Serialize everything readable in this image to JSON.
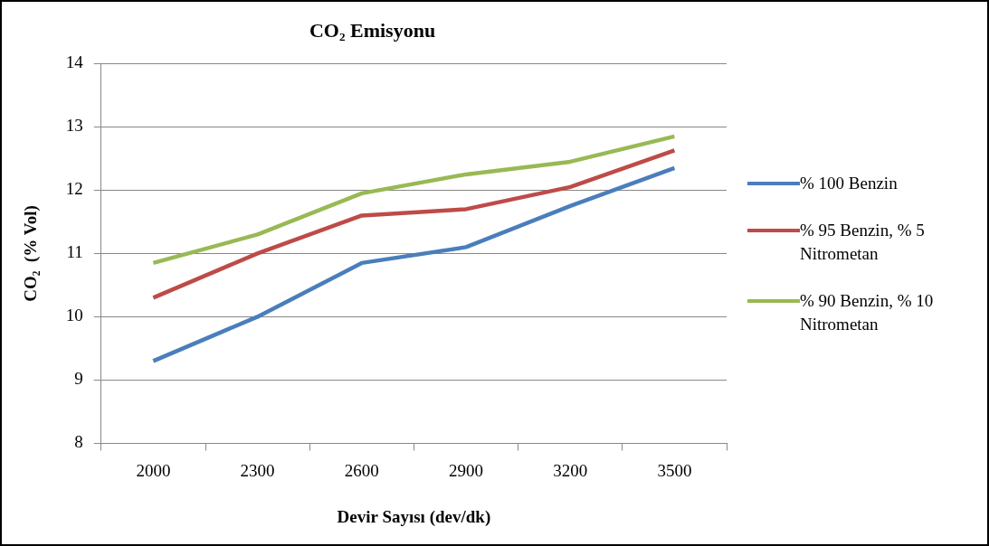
{
  "chart_data": {
    "type": "line",
    "title": "CO₂ Emisyonu",
    "xlabel": "Devir Sayısı (dev/dk)",
    "ylabel": "CO₂  (% Vol)",
    "categories": [
      "2000",
      "2300",
      "2600",
      "2900",
      "3200",
      "3500"
    ],
    "series": [
      {
        "name": "% 100 Benzin",
        "color": "#4a7ebb",
        "values": [
          9.3,
          10.0,
          10.85,
          11.1,
          11.75,
          12.35
        ]
      },
      {
        "name": "% 95 Benzin, % 5 Nitrometan",
        "color": "#be4b48",
        "values": [
          10.3,
          11.0,
          11.6,
          11.7,
          12.05,
          12.63
        ]
      },
      {
        "name": "% 90 Benzin, % 10 Nitrometan",
        "color": "#98b954",
        "values": [
          10.85,
          11.3,
          11.95,
          12.25,
          12.45,
          12.85
        ]
      }
    ],
    "ylim": [
      8,
      14
    ],
    "yticks": [
      8,
      9,
      10,
      11,
      12,
      13,
      14
    ],
    "grid": "y",
    "legend": "right",
    "marker": "none",
    "line_style": "solid"
  }
}
